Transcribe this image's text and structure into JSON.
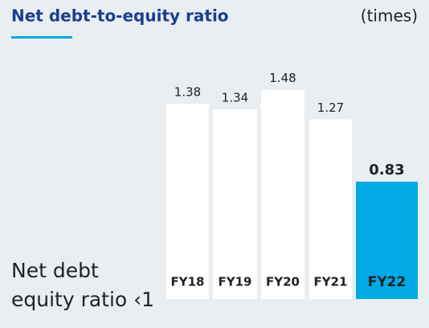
{
  "chart_data": {
    "type": "bar",
    "title": "Net debt-to-equity ratio",
    "unit_label": "(times)",
    "categories": [
      "FY18",
      "FY19",
      "FY20",
      "FY21",
      "FY22"
    ],
    "values": [
      1.38,
      1.34,
      1.48,
      1.27,
      0.83
    ],
    "colors": [
      "#ffffff",
      "#ffffff",
      "#ffffff",
      "#ffffff",
      "#00a9e6"
    ],
    "annotation": [
      "Net debt",
      "equity ratio ‹1"
    ]
  }
}
